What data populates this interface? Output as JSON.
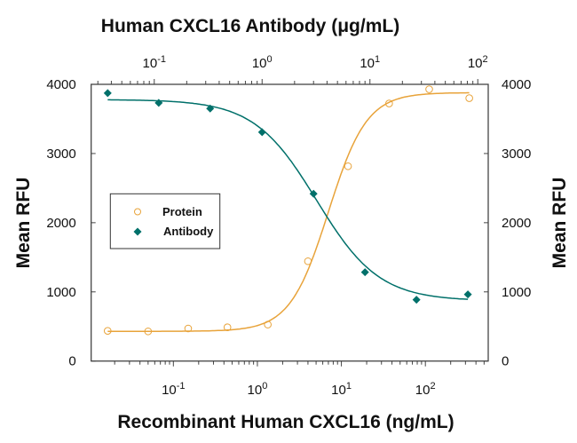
{
  "chart_data": {
    "type": "scatter",
    "top_xlabel": "Human CXCL16 Antibody (μg/mL)",
    "xlabel": "Recombinant Human CXCL16 (ng/mL)",
    "ylabel": "Mean RFU",
    "y2label": "Mean RFU",
    "xscale": "log",
    "top_xscale": "log",
    "xlim": [
      0.0105,
      560
    ],
    "top_xlim": [
      0.026,
      125
    ],
    "ylim": [
      0,
      4000
    ],
    "yticks": [
      "0",
      "1000",
      "2000",
      "3000",
      "4000"
    ],
    "xticks": [
      {
        "base": "10",
        "exp": "-1"
      },
      {
        "base": "10",
        "exp": "0"
      },
      {
        "base": "10",
        "exp": "1"
      },
      {
        "base": "10",
        "exp": "2"
      }
    ],
    "top_xticks": [
      {
        "base": "10",
        "exp": "-1"
      },
      {
        "base": "10",
        "exp": "0"
      },
      {
        "base": "10",
        "exp": "1"
      },
      {
        "base": "10",
        "exp": "2"
      }
    ],
    "grid": false,
    "legend_position": "center-left",
    "series": [
      {
        "name": "Protein",
        "axis": "bottom",
        "marker": "open-circle",
        "color": "#E8A33A",
        "x": [
          0.0165,
          0.05,
          0.15,
          0.44,
          1.33,
          4,
          12,
          37,
          111,
          333
        ],
        "y": [
          436,
          429,
          471,
          488,
          527,
          1443,
          2816,
          3723,
          3929,
          3800
        ],
        "fit": {
          "bottom": 430,
          "top": 3880,
          "ec50": 7,
          "hill": 1.9
        }
      },
      {
        "name": "Antibody",
        "axis": "top",
        "marker": "filled-diamond",
        "color": "#00706A",
        "x": [
          0.037,
          0.11,
          0.33,
          1,
          3,
          9,
          27,
          81
        ],
        "y": [
          3873,
          3732,
          3651,
          3308,
          2418,
          1284,
          886,
          963
        ],
        "fit": {
          "bottom": 870,
          "top": 3780,
          "ec50": 3.2,
          "hill": 1.5
        }
      }
    ]
  }
}
